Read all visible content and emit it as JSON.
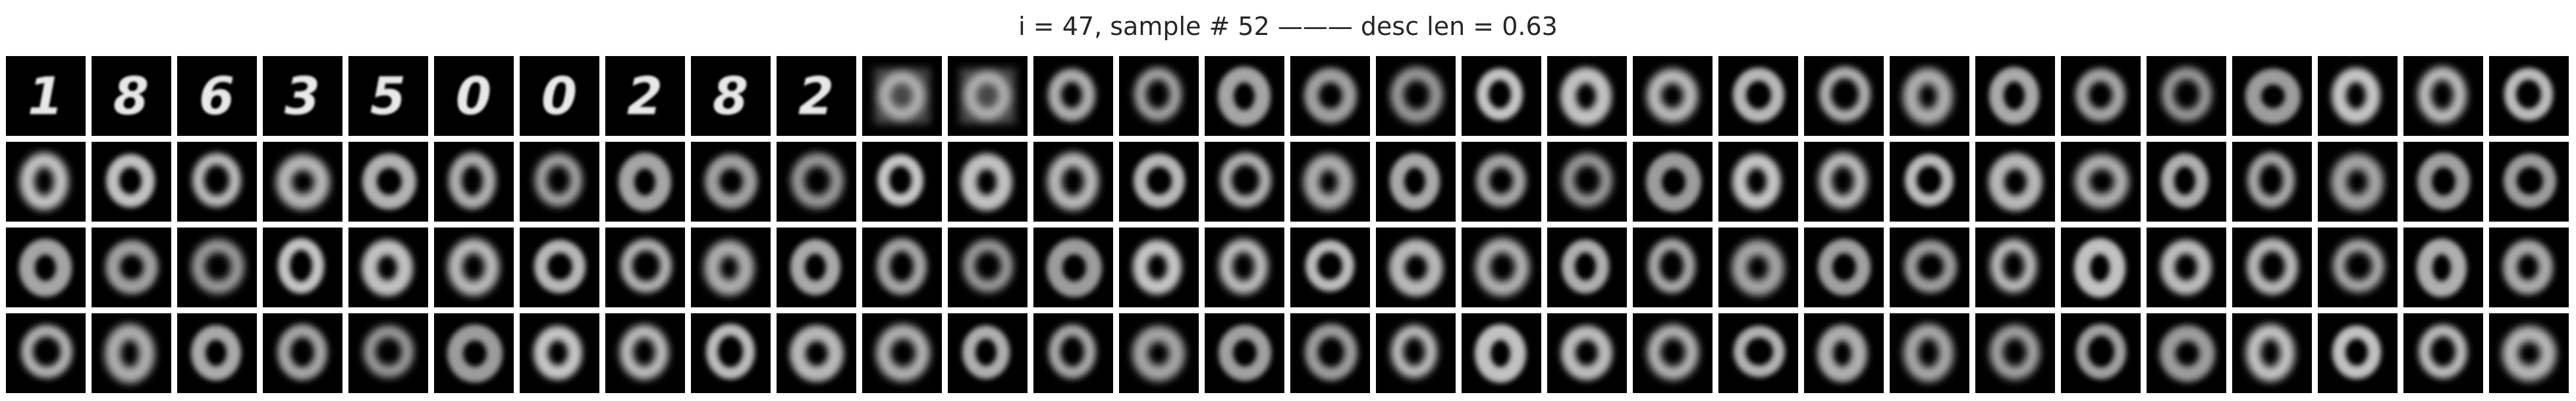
{
  "figure": {
    "title": "i = 47, sample # 52 ——— desc len = 0.63"
  },
  "grid": {
    "rows": 4,
    "columns": 30,
    "tile_background": "#000000",
    "tile_foreground": "#e8e8e8",
    "row1_glyphs": [
      "1",
      "8",
      "6",
      "3",
      "5",
      "0",
      "0",
      "2",
      "8",
      "2",
      "",
      "",
      "0",
      "0",
      "0",
      "0",
      "0",
      "0",
      "0",
      "0",
      "0",
      "0",
      "0",
      "0",
      "0",
      "0",
      "0",
      "0",
      "0",
      "0"
    ]
  }
}
